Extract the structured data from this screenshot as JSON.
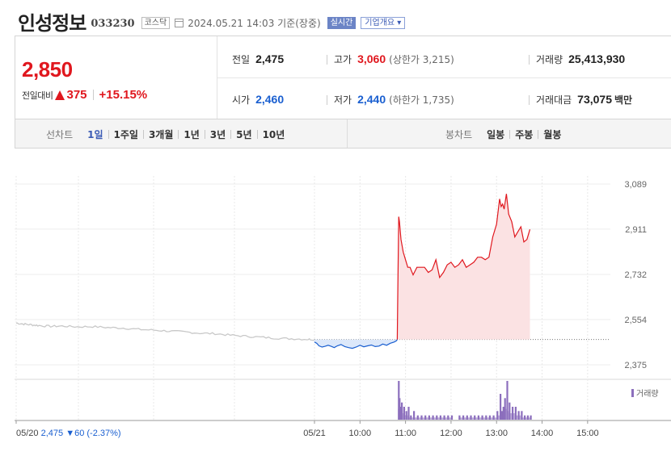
{
  "header": {
    "name": "인성정보",
    "code": "033230",
    "market": "코스닥",
    "timestamp": "2024.05.21 14:03",
    "basis": "기준(장중)",
    "live_label": "실시간",
    "overview_label": "기업개요"
  },
  "summary": {
    "current_price": "2,850",
    "change_label": "전일대비",
    "change_value": "375",
    "change_rate": "+15.15%",
    "prev_close": {
      "label": "전일",
      "value": "2,475"
    },
    "open": {
      "label": "시가",
      "value": "2,460"
    },
    "high": {
      "label": "고가",
      "value": "3,060",
      "limit_label": "(상한가",
      "limit_value": "3,215)"
    },
    "low": {
      "label": "저가",
      "value": "2,440",
      "limit_label": "(하한가",
      "limit_value": "1,735)"
    },
    "volume": {
      "label": "거래량",
      "value": "25,413,930"
    },
    "amount": {
      "label": "거래대금",
      "value": "73,075",
      "unit": "백만"
    }
  },
  "tabs": {
    "line_caption": "선차트",
    "line_items": [
      "1일",
      "1주일",
      "3개월",
      "1년",
      "3년",
      "5년",
      "10년"
    ],
    "line_active": "1일",
    "candle_caption": "봉차트",
    "candle_items": [
      "일봉",
      "주봉",
      "월봉"
    ]
  },
  "colors": {
    "up": "#e0171e",
    "down": "#1a5fd0",
    "up_fill": "#fbe2e3",
    "down_fill": "#dce8fa",
    "prev_day_line": "#c8c8c8",
    "volume": "#8c6fbd"
  },
  "chart_data": {
    "type": "line",
    "y_ticks": [
      "3,089",
      "2,911",
      "2,732",
      "2,554",
      "2,375"
    ],
    "ylim": [
      2375,
      3089
    ],
    "baseline": 2475,
    "x_ticks": [
      "05/21",
      "10:00",
      "11:00",
      "12:00",
      "13:00",
      "14:00",
      "15:00"
    ],
    "x_tick_minutes": [
      0,
      60,
      120,
      180,
      240,
      300,
      360
    ],
    "volume_legend": "거래량",
    "prev_day": {
      "date": "05/20",
      "close": "2,475",
      "change": "60",
      "rate": "(-2.37%)",
      "points": [
        [
          0,
          2540
        ],
        [
          10,
          2536
        ],
        [
          20,
          2533
        ],
        [
          30,
          2530
        ],
        [
          45,
          2527
        ],
        [
          60,
          2528
        ],
        [
          80,
          2525
        ],
        [
          100,
          2526
        ],
        [
          120,
          2522
        ],
        [
          140,
          2520
        ],
        [
          160,
          2515
        ],
        [
          180,
          2512
        ],
        [
          200,
          2508
        ],
        [
          220,
          2505
        ],
        [
          240,
          2500
        ],
        [
          260,
          2498
        ],
        [
          280,
          2492
        ],
        [
          300,
          2488
        ],
        [
          320,
          2484
        ],
        [
          340,
          2480
        ],
        [
          360,
          2478
        ],
        [
          380,
          2476
        ],
        [
          390,
          2475
        ]
      ]
    },
    "today_minutes": [
      0,
      3,
      6,
      10,
      14,
      18,
      22,
      26,
      30,
      35,
      40,
      45,
      50,
      55,
      60,
      65,
      70,
      75,
      80,
      85,
      90,
      95,
      100,
      105,
      108,
      110,
      111,
      112,
      114,
      117,
      120,
      123,
      126,
      130,
      135,
      140,
      145,
      150,
      155,
      160,
      165,
      170,
      175,
      180,
      185,
      190,
      195,
      200,
      205,
      210,
      215,
      220,
      225,
      230,
      235,
      240,
      244,
      246,
      248,
      250,
      253,
      256,
      260,
      264,
      268,
      272,
      276,
      280,
      284
    ],
    "today_prices": [
      2465,
      2460,
      2450,
      2445,
      2448,
      2452,
      2448,
      2443,
      2450,
      2455,
      2447,
      2443,
      2440,
      2445,
      2452,
      2446,
      2450,
      2453,
      2447,
      2449,
      2457,
      2452,
      2460,
      2465,
      2470,
      2700,
      2960,
      2940,
      2870,
      2820,
      2790,
      2760,
      2760,
      2730,
      2760,
      2760,
      2760,
      2740,
      2750,
      2790,
      2720,
      2740,
      2770,
      2780,
      2760,
      2770,
      2790,
      2760,
      2770,
      2780,
      2800,
      2800,
      2790,
      2800,
      2880,
      2930,
      3030,
      3000,
      3010,
      2990,
      3050,
      2970,
      2940,
      2880,
      2900,
      2920,
      2860,
      2870,
      2910
    ],
    "today_volumes": [
      0,
      0,
      0,
      0,
      0,
      0,
      0,
      0,
      0,
      0,
      0,
      0,
      0,
      0,
      0,
      0,
      0,
      0,
      0,
      0,
      0,
      0,
      0,
      0,
      0,
      9,
      5,
      3,
      4,
      3,
      2,
      3,
      1,
      2,
      1,
      1,
      1,
      1,
      1,
      1,
      1,
      1,
      1,
      1,
      0,
      1,
      1,
      1,
      1,
      1,
      1,
      1,
      1,
      1,
      1,
      2,
      6,
      2,
      3,
      5,
      9,
      4,
      3,
      3,
      2,
      2,
      1,
      1,
      1
    ]
  }
}
